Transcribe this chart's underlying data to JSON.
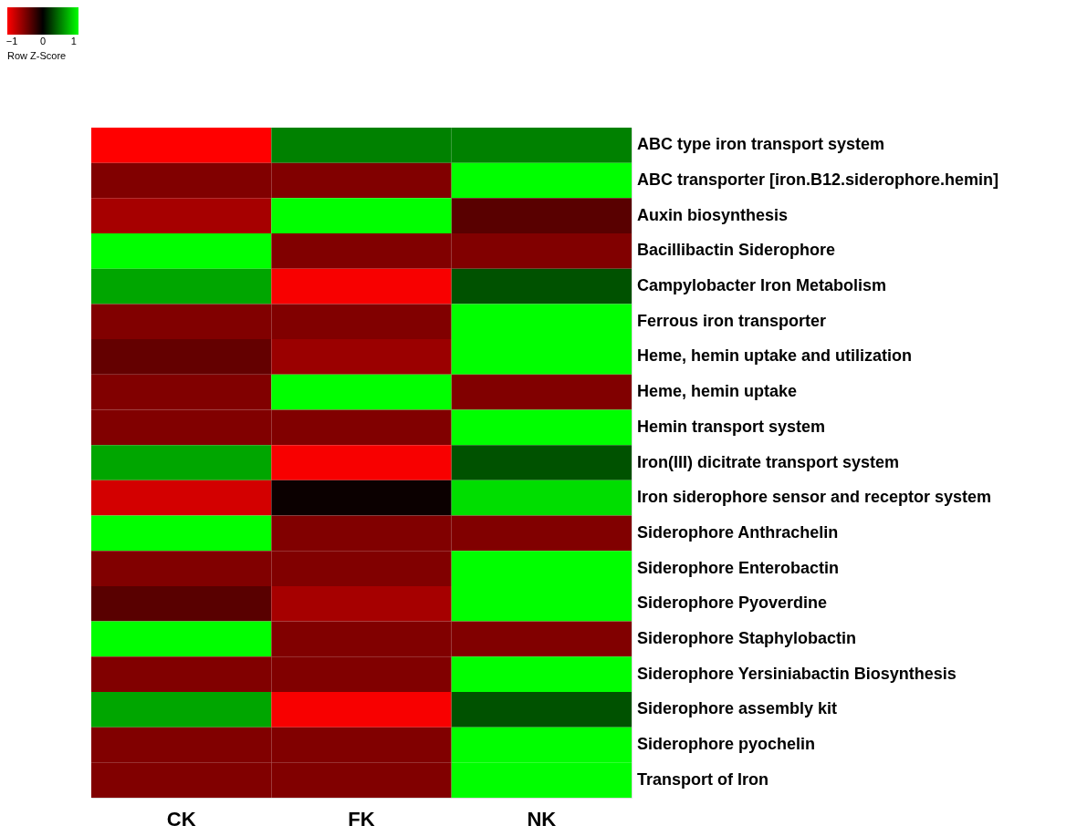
{
  "chart_data": {
    "type": "heatmap",
    "categories": [
      "CK",
      "FK",
      "NK"
    ],
    "y_categories": [
      "ABC type iron transport system",
      "ABC transporter [iron.B12.siderophore.hemin]",
      "Auxin biosynthesis",
      "Bacillibactin Siderophore",
      "Campylobacter Iron Metabolism",
      "Ferrous iron transporter",
      "Heme, hemin uptake and utilization",
      "Heme, hemin uptake",
      "Hemin transport system",
      "Iron(III) dicitrate transport system",
      "Iron siderophore sensor and receptor system",
      "Siderophore Anthrachelin",
      "Siderophore Enterobactin",
      "Siderophore Pyoverdine",
      "Siderophore Staphylobactin",
      "Siderophore Yersiniabactin Biosynthesis",
      "Siderophore assembly kit",
      "Siderophore pyochelin",
      "Transport of Iron"
    ],
    "cells": [
      [
        -1.15,
        0.58,
        0.58
      ],
      [
        -0.58,
        -0.58,
        1.15
      ],
      [
        -0.75,
        1.15,
        -0.4
      ],
      [
        1.15,
        -0.58,
        -0.58
      ],
      [
        0.75,
        -1.12,
        0.37
      ],
      [
        -0.58,
        -0.58,
        1.15
      ],
      [
        -0.45,
        -0.7,
        1.15
      ],
      [
        -0.58,
        1.15,
        -0.58
      ],
      [
        -0.58,
        -0.58,
        1.15
      ],
      [
        0.75,
        -1.12,
        0.37
      ],
      [
        -0.95,
        -0.05,
        1.0
      ],
      [
        1.15,
        -0.58,
        -0.58
      ],
      [
        -0.58,
        -0.58,
        1.15
      ],
      [
        -0.4,
        -0.75,
        1.15
      ],
      [
        1.15,
        -0.58,
        -0.58
      ],
      [
        -0.58,
        -0.58,
        1.15
      ],
      [
        0.75,
        -1.12,
        0.37
      ],
      [
        -0.58,
        -0.58,
        1.15
      ],
      [
        -0.58,
        -0.58,
        1.15
      ]
    ],
    "clim": [
      -1.15,
      1.15
    ],
    "cticks": [
      -1,
      0,
      1
    ],
    "colors": [
      "#ff0000",
      "#000000",
      "#00ff00"
    ],
    "clabel": "Row Z-Score"
  }
}
